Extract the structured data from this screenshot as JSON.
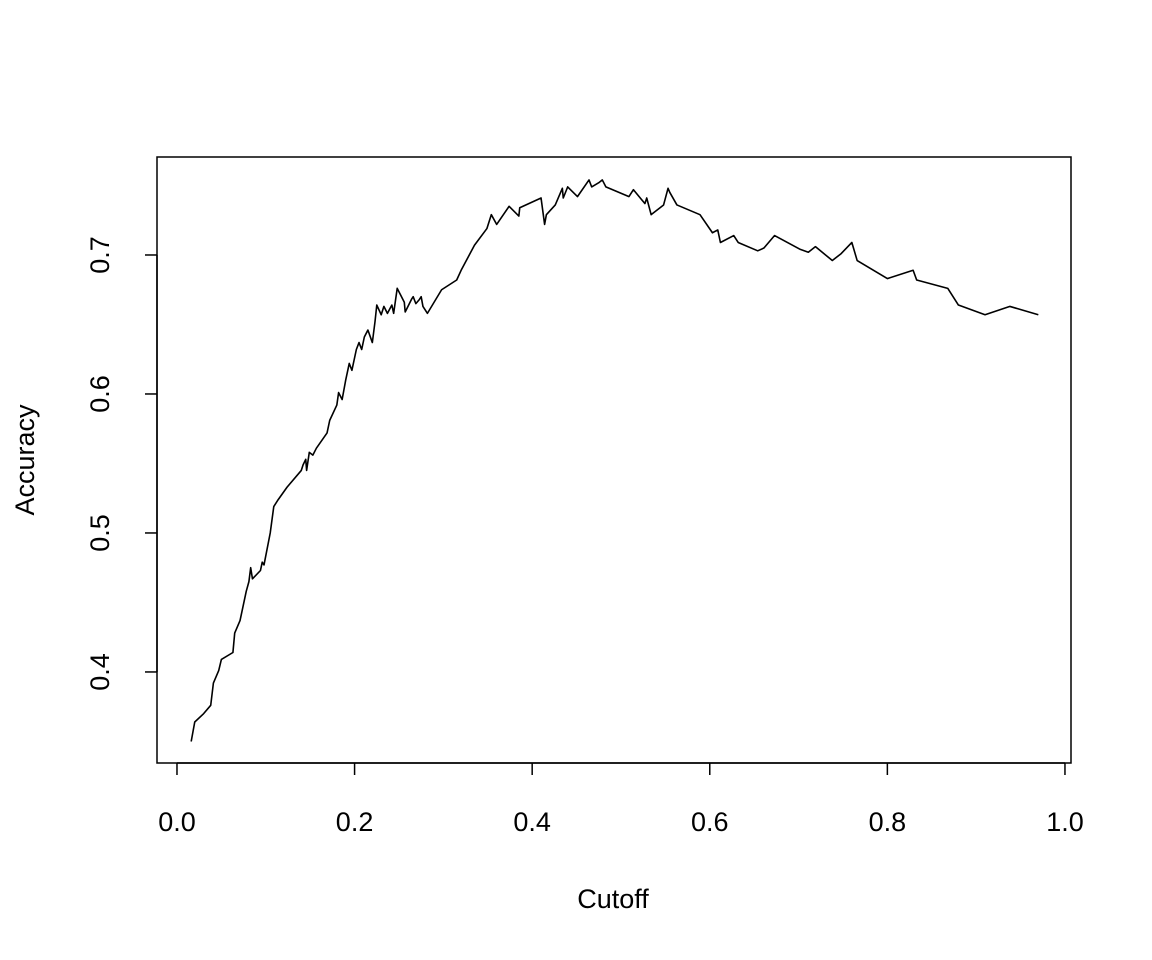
{
  "chart_data": {
    "type": "line",
    "x_label": "Cutoff",
    "y_label": "Accuracy",
    "xlim": [
      -0.0225,
      1.0068
    ],
    "ylim": [
      0.3345,
      0.7705
    ],
    "xticks": [
      {
        "value": 0,
        "label": "0.0"
      },
      0.2,
      0.4,
      0.6,
      0.8,
      {
        "value": 1,
        "label": "1.0"
      }
    ],
    "yticks": [
      0.4,
      0.5,
      0.6,
      0.7
    ],
    "color": "#000000",
    "x": [
      0.016,
      0.02,
      0.03,
      0.038,
      0.041,
      0.047,
      0.05,
      0.063,
      0.065,
      0.071,
      0.078,
      0.081,
      0.083,
      0.085,
      0.094,
      0.096,
      0.098,
      0.105,
      0.109,
      0.114,
      0.124,
      0.14,
      0.142,
      0.145,
      0.146,
      0.149,
      0.153,
      0.157,
      0.169,
      0.172,
      0.18,
      0.182,
      0.186,
      0.19,
      0.194,
      0.197,
      0.202,
      0.205,
      0.208,
      0.211,
      0.215,
      0.22,
      0.223,
      0.225,
      0.23,
      0.233,
      0.237,
      0.242,
      0.244,
      0.248,
      0.252,
      0.256,
      0.257,
      0.264,
      0.266,
      0.269,
      0.273,
      0.275,
      0.277,
      0.282,
      0.298,
      0.315,
      0.32,
      0.335,
      0.349,
      0.354,
      0.36,
      0.374,
      0.385,
      0.386,
      0.41,
      0.414,
      0.416,
      0.426,
      0.434,
      0.435,
      0.44,
      0.451,
      0.464,
      0.467,
      0.475,
      0.479,
      0.483,
      0.509,
      0.514,
      0.523,
      0.527,
      0.529,
      0.534,
      0.544,
      0.548,
      0.553,
      0.555,
      0.563,
      0.589,
      0.603,
      0.609,
      0.612,
      0.627,
      0.632,
      0.654,
      0.661,
      0.673,
      0.702,
      0.711,
      0.719,
      0.738,
      0.748,
      0.76,
      0.766,
      0.8,
      0.829,
      0.833,
      0.868,
      0.88,
      0.91,
      0.938,
      0.97
    ],
    "values": [
      0.35,
      0.364,
      0.37,
      0.376,
      0.392,
      0.401,
      0.409,
      0.414,
      0.428,
      0.437,
      0.458,
      0.465,
      0.475,
      0.467,
      0.473,
      0.479,
      0.477,
      0.5,
      0.519,
      0.524,
      0.533,
      0.545,
      0.549,
      0.553,
      0.545,
      0.558,
      0.556,
      0.561,
      0.572,
      0.581,
      0.592,
      0.601,
      0.596,
      0.61,
      0.622,
      0.617,
      0.632,
      0.637,
      0.632,
      0.641,
      0.646,
      0.637,
      0.652,
      0.664,
      0.657,
      0.663,
      0.658,
      0.664,
      0.658,
      0.676,
      0.671,
      0.666,
      0.659,
      0.668,
      0.67,
      0.665,
      0.668,
      0.67,
      0.663,
      0.658,
      0.675,
      0.682,
      0.689,
      0.707,
      0.719,
      0.729,
      0.722,
      0.735,
      0.728,
      0.734,
      0.741,
      0.722,
      0.729,
      0.736,
      0.748,
      0.741,
      0.749,
      0.742,
      0.754,
      0.749,
      0.752,
      0.754,
      0.749,
      0.742,
      0.747,
      0.74,
      0.737,
      0.741,
      0.729,
      0.734,
      0.736,
      0.748,
      0.745,
      0.736,
      0.729,
      0.716,
      0.718,
      0.709,
      0.714,
      0.709,
      0.703,
      0.705,
      0.714,
      0.704,
      0.702,
      0.706,
      0.696,
      0.701,
      0.709,
      0.696,
      0.683,
      0.689,
      0.682,
      0.676,
      0.664,
      0.657,
      0.663,
      0.657
    ]
  }
}
